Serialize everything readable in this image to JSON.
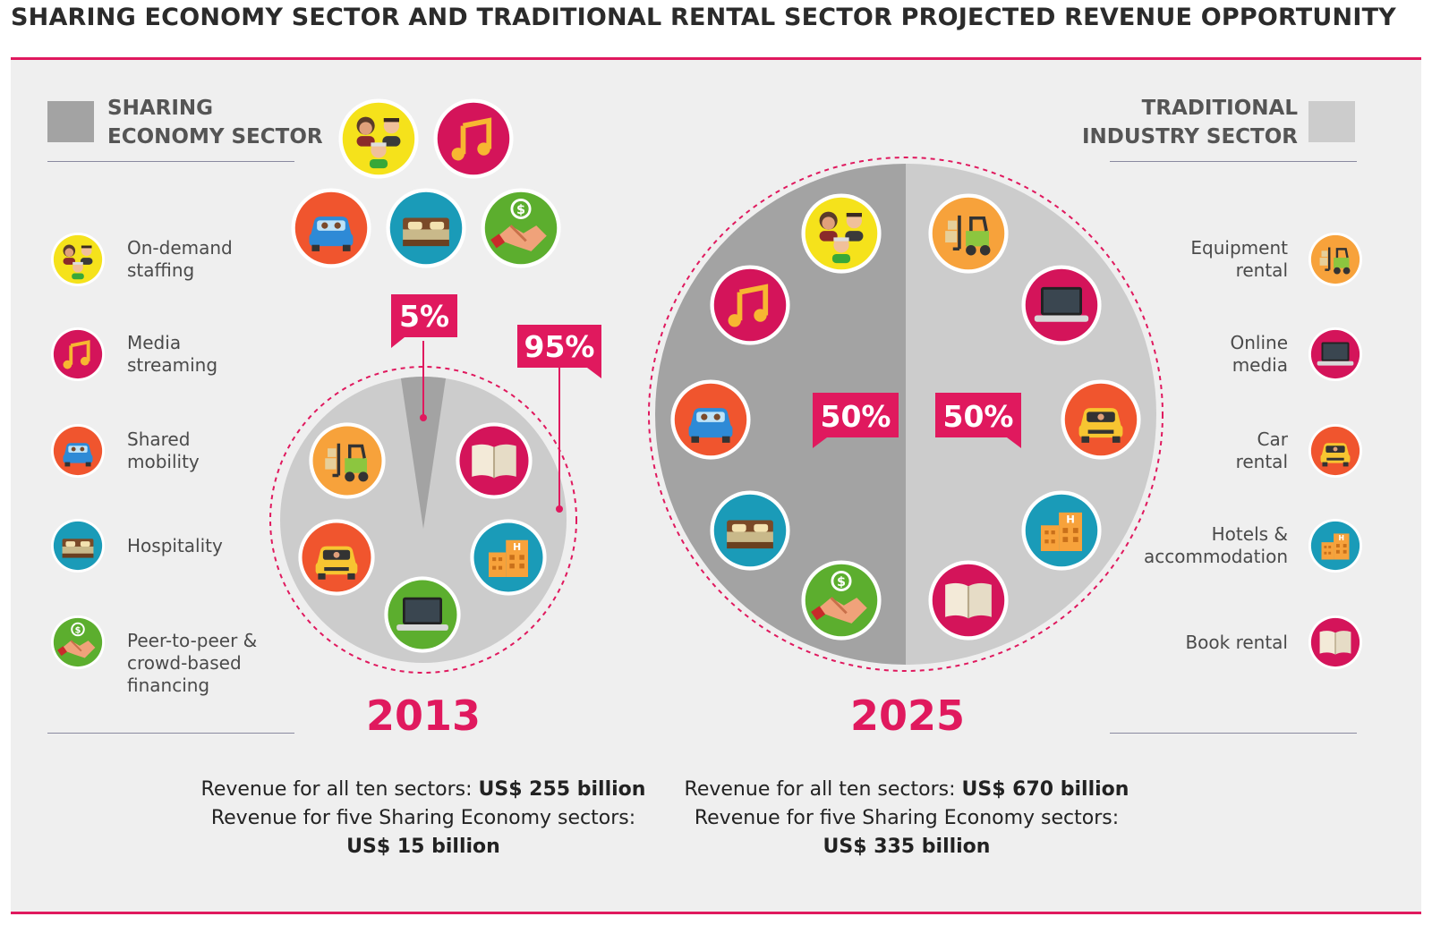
{
  "title": "SHARING ECONOMY SECTOR AND TRADITIONAL RENTAL SECTOR PROJECTED REVENUE OPPORTUNITY",
  "colors": {
    "accent": "#e0195e",
    "sharing_sector": "#a3a3a3",
    "traditional_sector": "#cccccc",
    "panel_bg": "#efefef"
  },
  "sharing_legend": {
    "heading_line1": "SHARING",
    "heading_line2": "ECONOMY SECTOR",
    "items": [
      {
        "label": "On-demand\nstaffing",
        "icon": "staffing-icon"
      },
      {
        "label": "Media\nstreaming",
        "icon": "music-icon"
      },
      {
        "label": "Shared\nmobility",
        "icon": "car-icon"
      },
      {
        "label": "Hospitality",
        "icon": "bed-icon"
      },
      {
        "label": "Peer-to-peer &\ncrowd-based\nfinancing",
        "icon": "handshake-icon"
      }
    ]
  },
  "traditional_legend": {
    "heading_line1": "TRADITIONAL",
    "heading_line2": "INDUSTRY SECTOR",
    "items": [
      {
        "label": "Equipment\nrental",
        "icon": "forklift-icon"
      },
      {
        "label": "Online\nmedia",
        "icon": "laptop-icon"
      },
      {
        "label": "Car\nrental",
        "icon": "taxi-icon"
      },
      {
        "label": "Hotels &\naccommodation",
        "icon": "hotel-icon"
      },
      {
        "label": "Book rental",
        "icon": "book-icon"
      }
    ]
  },
  "chart_data": [
    {
      "type": "pie",
      "year": "2013",
      "slices": [
        {
          "name": "Sharing Economy Sector",
          "value": 5,
          "label": "5%"
        },
        {
          "name": "Traditional Industry Sector",
          "value": 95,
          "label": "95%"
        }
      ],
      "revenue": {
        "all_prefix": "Revenue for all ten sectors:",
        "all_value": "US$ 255 billion",
        "five_prefix": "Revenue for five Sharing Economy sectors:",
        "five_value": "US$ 15 billion"
      }
    },
    {
      "type": "pie",
      "year": "2025",
      "slices": [
        {
          "name": "Sharing Economy Sector",
          "value": 50,
          "label": "50%"
        },
        {
          "name": "Traditional Industry Sector",
          "value": 50,
          "label": "50%"
        }
      ],
      "revenue": {
        "all_prefix": "Revenue for all ten sectors:",
        "all_value": "US$ 670 billion",
        "five_prefix": "Revenue for five Sharing Economy sectors:",
        "five_value": "US$ 335 billion"
      }
    }
  ]
}
